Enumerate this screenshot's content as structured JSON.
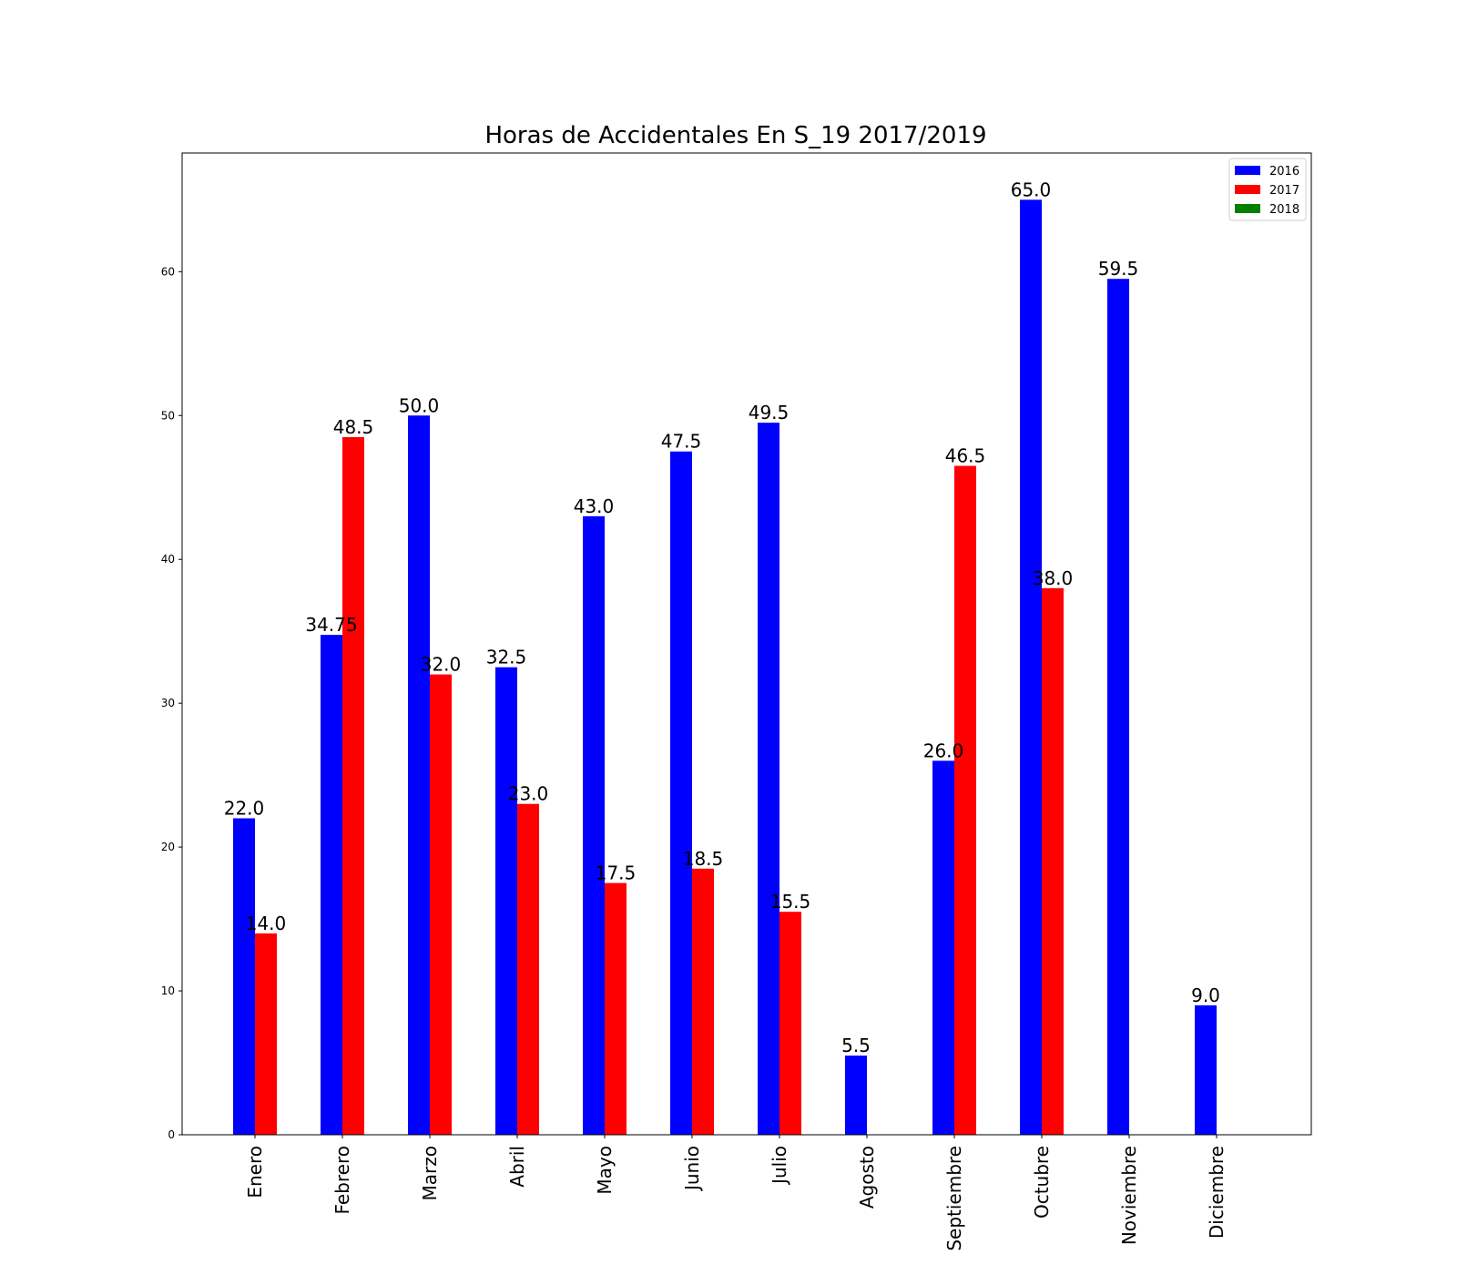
{
  "chart_data": {
    "type": "bar",
    "title": "Horas de Accidentales En S_19 2017/2019",
    "xlabel": "",
    "ylabel": "",
    "categories": [
      "Enero",
      "Febrero",
      "Marzo",
      "Abril",
      "Mayo",
      "Junio",
      "Julio",
      "Agosto",
      "Septiembre",
      "Octubre",
      "Noviembre",
      "Diciembre"
    ],
    "series": [
      {
        "name": "2016",
        "color": "#0000ff",
        "values": [
          22.0,
          34.75,
          50.0,
          32.5,
          43.0,
          47.5,
          49.5,
          5.5,
          26.0,
          65.0,
          59.5,
          9.0
        ],
        "labels": [
          "22.0",
          "34.75",
          "50.0",
          "32.5",
          "43.0",
          "47.5",
          "49.5",
          "5.5",
          "26.0",
          "65.0",
          "59.5",
          "9.0"
        ]
      },
      {
        "name": "2017",
        "color": "#ff0000",
        "values": [
          14.0,
          48.5,
          32.0,
          23.0,
          17.5,
          18.5,
          15.5,
          null,
          46.5,
          38.0,
          null,
          null
        ],
        "labels": [
          "14.0",
          "48.5",
          "32.0",
          "23.0",
          "17.5",
          "18.5",
          "15.5",
          "",
          "46.5",
          "38.0",
          "",
          ""
        ]
      },
      {
        "name": "2018",
        "color": "#008000",
        "values": [
          null,
          null,
          null,
          null,
          null,
          null,
          null,
          null,
          null,
          null,
          null,
          null
        ],
        "labels": [
          "",
          "",
          "",
          "",
          "",
          "",
          "",
          "",
          "",
          "",
          "",
          ""
        ]
      }
    ],
    "yticks": [
      0,
      10,
      20,
      30,
      40,
      50,
      60
    ],
    "ylim": [
      0,
      68.25
    ],
    "grid": false,
    "legend": "top-right"
  }
}
